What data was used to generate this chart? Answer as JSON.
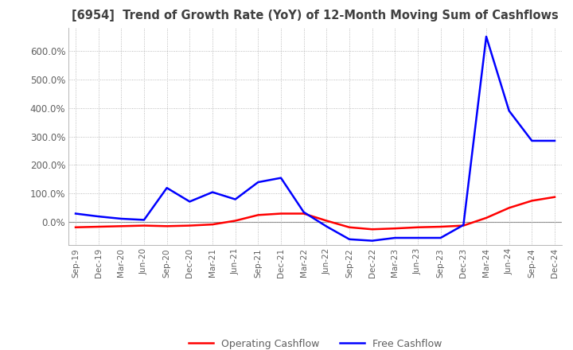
{
  "title": "[6954]  Trend of Growth Rate (YoY) of 12-Month Moving Sum of Cashflows",
  "legend_labels": [
    "Operating Cashflow",
    "Free Cashflow"
  ],
  "line_colors": [
    "#ff0000",
    "#0000ff"
  ],
  "x_labels": [
    "Sep-19",
    "Dec-19",
    "Mar-20",
    "Jun-20",
    "Sep-20",
    "Dec-20",
    "Mar-21",
    "Jun-21",
    "Sep-21",
    "Dec-21",
    "Mar-22",
    "Jun-22",
    "Sep-22",
    "Dec-22",
    "Mar-23",
    "Jun-23",
    "Sep-23",
    "Dec-23",
    "Mar-24",
    "Jun-24",
    "Sep-24",
    "Dec-24"
  ],
  "operating_cashflow": [
    -18.0,
    -16.0,
    -14.0,
    -12.0,
    -14.0,
    -12.0,
    -8.0,
    5.0,
    25.0,
    30.0,
    30.0,
    5.0,
    -18.0,
    -25.0,
    -22.0,
    -18.0,
    -16.0,
    -12.0,
    15.0,
    50.0,
    75.0,
    88.0
  ],
  "free_cashflow": [
    30.0,
    20.0,
    12.0,
    8.0,
    120.0,
    72.0,
    105.0,
    80.0,
    140.0,
    155.0,
    35.0,
    -15.0,
    -60.0,
    -65.0,
    -55.0,
    -55.0,
    -55.0,
    -10.0,
    650.0,
    390.0,
    285.0,
    285.0
  ],
  "ylim": [
    -80,
    680
  ],
  "yticks": [
    0,
    100,
    200,
    300,
    400,
    500,
    600
  ],
  "ytick_labels": [
    "0.0%",
    "100.0%",
    "200.0%",
    "300.0%",
    "400.0%",
    "500.0%",
    "600.0%"
  ],
  "background_color": "#ffffff",
  "grid_color": "#aaaaaa",
  "title_color": "#404040",
  "tick_color": "#606060"
}
